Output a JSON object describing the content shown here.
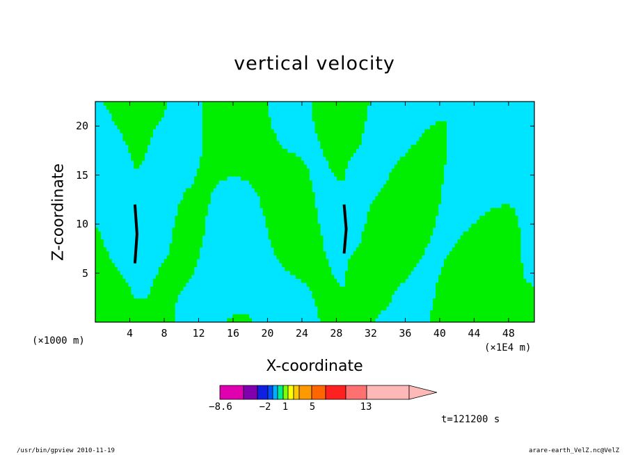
{
  "chart_data": {
    "type": "heatmap",
    "title": "vertical velocity",
    "xlabel": "X-coordinate",
    "ylabel": "Z-coordinate",
    "x_scale_left": "(×1000 m)",
    "x_scale_right": "(×1E4 m)",
    "x_ticks": [
      "4",
      "8",
      "12",
      "16",
      "20",
      "24",
      "28",
      "32",
      "36",
      "40",
      "44",
      "48"
    ],
    "y_ticks": [
      "5",
      "10",
      "15",
      "20"
    ],
    "xlim": [
      0,
      51
    ],
    "ylim": [
      0,
      22.5
    ],
    "colorbar": {
      "labels": [
        "−8.6",
        "−2",
        "1",
        "5",
        "13"
      ],
      "colors": [
        "#e000b0",
        "#8000b0",
        "#1020e0",
        "#0050ff",
        "#00b0ff",
        "#00ee90",
        "#80ff00",
        "#ffff00",
        "#ffc800",
        "#ff9900",
        "#ff6600",
        "#ff2020",
        "#ff7070",
        "#ffb8b8"
      ],
      "extend": "max"
    },
    "field_colors": {
      "negative": "#00e5ff",
      "positive": "#00ee00",
      "strong": "#000000"
    },
    "time": "t=121200 s"
  },
  "footer": {
    "left": "/usr/bin/gpview   2010-11-19",
    "right": "arare-earth_VelZ.nc@VelZ"
  }
}
